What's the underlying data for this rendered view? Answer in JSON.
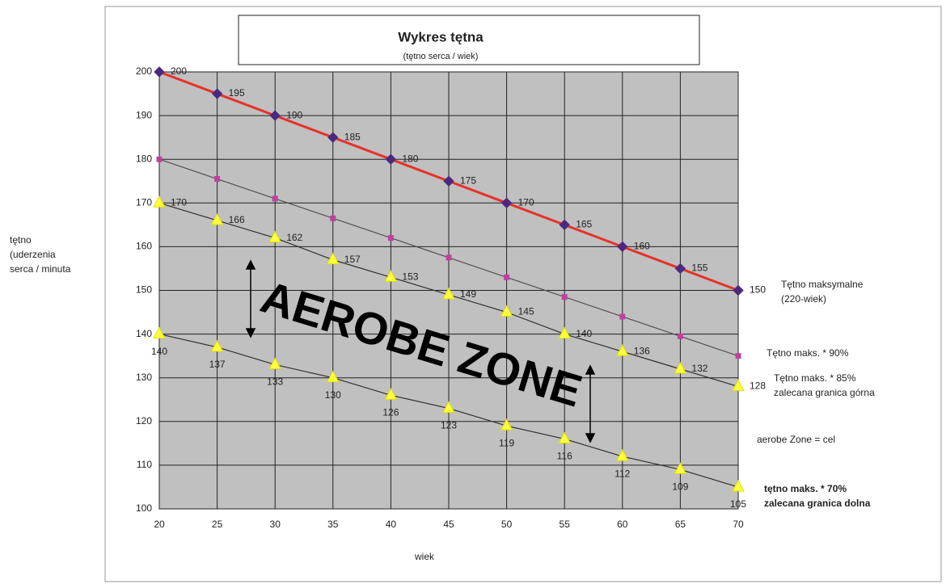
{
  "chart_data": {
    "type": "line",
    "title": "Wykres tętna",
    "subtitle": "(tętno serca / wiek)",
    "x_label": "wiek",
    "y_label": "tętno\n(uderzenia\nserca / minuta",
    "x": [
      20,
      25,
      30,
      35,
      40,
      45,
      50,
      55,
      60,
      65,
      70
    ],
    "xlim": [
      20,
      70
    ],
    "xticks": [
      20,
      25,
      30,
      35,
      40,
      45,
      50,
      55,
      60,
      65,
      70
    ],
    "ylim": [
      100,
      200
    ],
    "yticks": [
      100,
      110,
      120,
      130,
      140,
      150,
      160,
      170,
      180,
      190,
      200
    ],
    "grid": true,
    "series": [
      {
        "name": "Tętno maksymalne\n(220-wiek)",
        "color": "#e8302a",
        "marker": "diamond",
        "marker_color": "#4a2a80",
        "data_labels": "right",
        "values": [
          200,
          195,
          190,
          185,
          180,
          175,
          170,
          165,
          160,
          155,
          150
        ]
      },
      {
        "name": "Tętno maks. * 90%",
        "color": "#505050",
        "marker": "square",
        "marker_color": "#c040a0",
        "data_labels": "none",
        "values": [
          180,
          175.5,
          171,
          166.5,
          162,
          157.5,
          153,
          148.5,
          144,
          139.5,
          135
        ]
      },
      {
        "name": "Tętno maks. * 85%\nzalecana granica górna",
        "color": "#303030",
        "marker": "triangle",
        "marker_color": "#ffff40",
        "data_labels": "right",
        "values": [
          170,
          166,
          162,
          157,
          153,
          149,
          145,
          140,
          136,
          132,
          128
        ]
      },
      {
        "name": "tętno maks. * 70%\nzalecana granica dolna",
        "color": "#303030",
        "marker": "triangle",
        "marker_color": "#ffff40",
        "data_labels": "below",
        "values": [
          140,
          137,
          133,
          130,
          126,
          123,
          119,
          116,
          112,
          109,
          105
        ]
      }
    ],
    "annotations": [
      "AEROBE ZONE",
      "aerobe Zone = cel"
    ]
  }
}
